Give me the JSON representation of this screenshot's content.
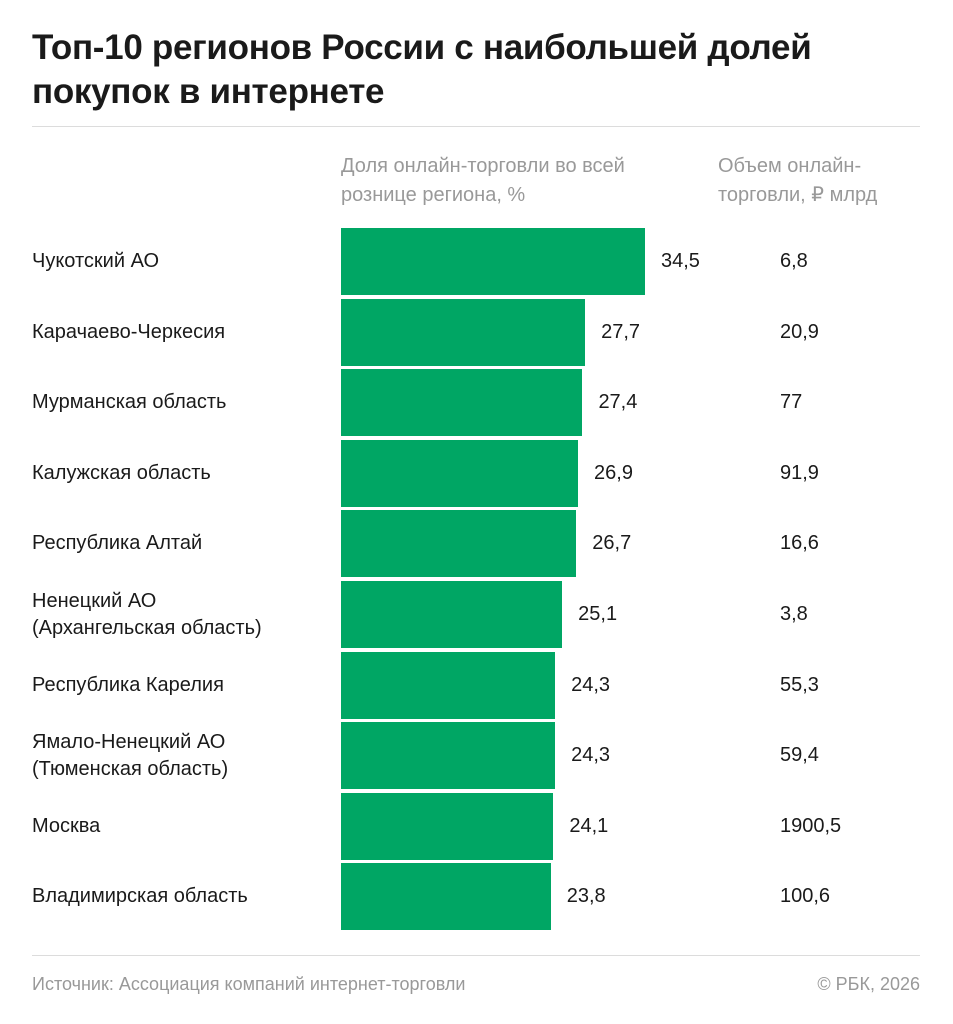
{
  "title": "Топ-10 регионов России с наибольшей долей покупок в интернете",
  "colors": {
    "bar": "#00a664",
    "text": "#1a1a1a",
    "muted": "#999999"
  },
  "chart_data": {
    "type": "bar",
    "orientation": "horizontal",
    "title": "Топ-10 регионов России с наибольшей долей покупок в интернете",
    "column_headers": {
      "share": "Доля онлайн-торговли во всей рознице региона, %",
      "volume": "Объем онлайн-торговли, ₽ млрд"
    },
    "categories": [
      [
        "Чукотский АО"
      ],
      [
        "Карачаево-Черкесия"
      ],
      [
        "Мурманская область"
      ],
      [
        "Калужская область"
      ],
      [
        "Республика Алтай"
      ],
      [
        "Ненецкий АО",
        "(Архангельская область)"
      ],
      [
        "Республика Карелия"
      ],
      [
        "Ямало-Ненецкий АО",
        "(Тюменская область)"
      ],
      [
        "Москва"
      ],
      [
        "Владимирская область"
      ]
    ],
    "values": [
      34.5,
      27.7,
      27.4,
      26.9,
      26.7,
      25.1,
      24.3,
      24.3,
      24.1,
      23.8
    ],
    "value_labels": [
      "34,5",
      "27,7",
      "27,4",
      "26,9",
      "26,7",
      "25,1",
      "24,3",
      "24,3",
      "24,1",
      "23,8"
    ],
    "volume": [
      "6,8",
      "20,9",
      "77",
      "91,9",
      "16,6",
      "3,8",
      "55,3",
      "59,4",
      "1900,5",
      "100,6"
    ],
    "xlim": [
      0,
      34.5
    ],
    "grid": false
  },
  "footer": {
    "source": "Источник: Ассоциация компаний интернет-торговли",
    "copyright": "© РБК, 2026"
  }
}
